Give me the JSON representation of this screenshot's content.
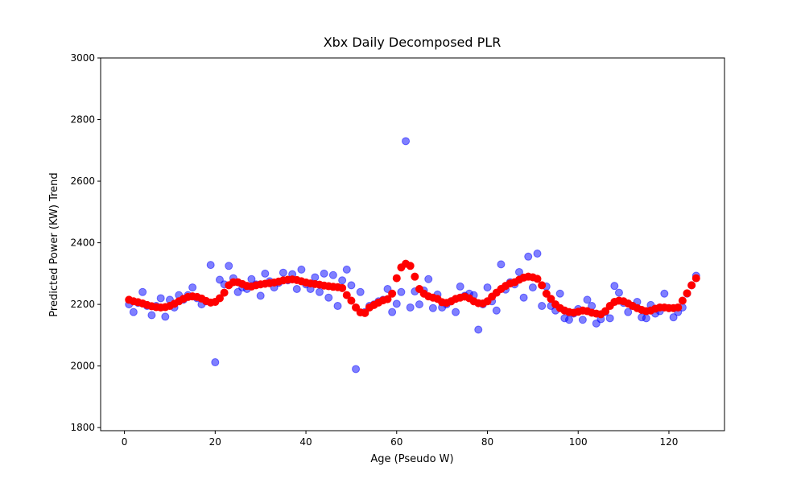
{
  "chart_data": {
    "type": "scatter",
    "title": "Xbx Daily Decomposed PLR",
    "x_label": "Age (Pseudo W)",
    "y_label": "Predicted Power (KW) Trend",
    "x": [
      1,
      2,
      3,
      4,
      5,
      6,
      7,
      8,
      9,
      10,
      11,
      12,
      13,
      14,
      15,
      16,
      17,
      18,
      19,
      20,
      21,
      22,
      23,
      24,
      25,
      26,
      27,
      28,
      29,
      30,
      31,
      32,
      33,
      34,
      35,
      36,
      37,
      38,
      39,
      40,
      41,
      42,
      43,
      44,
      45,
      46,
      47,
      48,
      49,
      50,
      51,
      52,
      53,
      54,
      55,
      56,
      57,
      58,
      59,
      60,
      61,
      62,
      63,
      64,
      65,
      66,
      67,
      68,
      69,
      70,
      71,
      72,
      73,
      74,
      75,
      76,
      77,
      78,
      79,
      80,
      81,
      82,
      83,
      84,
      85,
      86,
      87,
      88,
      89,
      90,
      91,
      92,
      93,
      94,
      95,
      96,
      97,
      98,
      99,
      100,
      101,
      102,
      103,
      104,
      105,
      106,
      107,
      108,
      109,
      110,
      111,
      112,
      113,
      114,
      115,
      116,
      117,
      118,
      119,
      120,
      121,
      122,
      123,
      124,
      125,
      126
    ],
    "series": [
      {
        "color": "#0000ff",
        "alpha": 0.5,
        "values": [
          2200,
          2175,
          2205,
          2240,
          2195,
          2165,
          2195,
          2220,
          2160,
          2215,
          2190,
          2230,
          2215,
          2230,
          2255,
          2220,
          2200,
          2210,
          2328,
          2012,
          2280,
          2265,
          2325,
          2285,
          2240,
          2255,
          2250,
          2282,
          2265,
          2228,
          2300,
          2275,
          2255,
          2270,
          2303,
          2278,
          2298,
          2250,
          2313,
          2265,
          2250,
          2288,
          2240,
          2300,
          2222,
          2295,
          2195,
          2278,
          2313,
          2262,
          1990,
          2240,
          2175,
          2195,
          2200,
          2210,
          2215,
          2250,
          2175,
          2202,
          2240,
          2730,
          2190,
          2242,
          2200,
          2245,
          2282,
          2188,
          2232,
          2190,
          2200,
          2210,
          2175,
          2258,
          2228,
          2235,
          2230,
          2118,
          2200,
          2255,
          2210,
          2180,
          2330,
          2248,
          2272,
          2265,
          2305,
          2222,
          2355,
          2255,
          2365,
          2195,
          2258,
          2195,
          2180,
          2235,
          2155,
          2150,
          2170,
          2185,
          2150,
          2215,
          2195,
          2138,
          2152,
          2175,
          2155,
          2260,
          2238,
          2205,
          2175,
          2195,
          2208,
          2158,
          2155,
          2198,
          2170,
          2178,
          2235,
          2188,
          2158,
          2175,
          2190,
          2235,
          2262,
          2293
        ]
      },
      {
        "color": "#ff0000",
        "alpha": 1,
        "values": [
          2215,
          2210,
          2207,
          2203,
          2198,
          2194,
          2191,
          2190,
          2191,
          2195,
          2202,
          2210,
          2218,
          2224,
          2226,
          2224,
          2219,
          2211,
          2206,
          2208,
          2220,
          2238,
          2262,
          2272,
          2272,
          2266,
          2260,
          2258,
          2262,
          2265,
          2267,
          2269,
          2271,
          2274,
          2278,
          2280,
          2281,
          2279,
          2275,
          2271,
          2268,
          2266,
          2264,
          2261,
          2259,
          2257,
          2256,
          2253,
          2230,
          2212,
          2190,
          2174,
          2172,
          2190,
          2198,
          2206,
          2213,
          2217,
          2235,
          2285,
          2320,
          2332,
          2325,
          2290,
          2250,
          2235,
          2226,
          2222,
          2218,
          2207,
          2205,
          2210,
          2218,
          2222,
          2225,
          2220,
          2210,
          2204,
          2203,
          2210,
          2225,
          2238,
          2250,
          2260,
          2268,
          2272,
          2280,
          2287,
          2290,
          2288,
          2283,
          2262,
          2235,
          2218,
          2200,
          2188,
          2180,
          2175,
          2173,
          2176,
          2180,
          2178,
          2173,
          2170,
          2168,
          2178,
          2195,
          2208,
          2212,
          2210,
          2203,
          2195,
          2188,
          2182,
          2178,
          2180,
          2186,
          2190,
          2190,
          2188,
          2188,
          2190,
          2212,
          2236,
          2262,
          2285
        ]
      }
    ],
    "xlim": [
      -5.25,
      132.25
    ],
    "xticks": [
      0,
      20,
      40,
      60,
      80,
      100,
      120
    ],
    "ylim": [
      1790,
      3000
    ],
    "yticks": [
      1800,
      2000,
      2200,
      2400,
      2600,
      2800,
      3000
    ],
    "grid": false
  }
}
